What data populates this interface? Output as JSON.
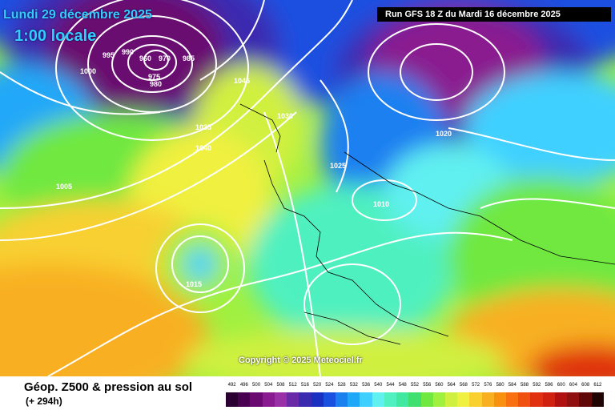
{
  "header": {
    "date": "Lundi 29 décembre 2025",
    "time": "1:00 locale",
    "run": "Run GFS 18 Z du Mardi 16 décembre 2025"
  },
  "copyright": "Copyright © 2025 Meteociel.fr",
  "footer": {
    "product": "Géop. Z500 & pression au sol",
    "lead": "(+ 294h)"
  },
  "legend": {
    "values": [
      "492",
      "496",
      "500",
      "504",
      "508",
      "512",
      "516",
      "520",
      "524",
      "528",
      "532",
      "536",
      "540",
      "544",
      "548",
      "552",
      "556",
      "560",
      "564",
      "568",
      "572",
      "576",
      "580",
      "584",
      "588",
      "592",
      "596",
      "600",
      "604",
      "608",
      "612"
    ],
    "colors": [
      "#2a0030",
      "#4a0050",
      "#6a0a70",
      "#8a1a90",
      "#9a30a8",
      "#6a2aa8",
      "#3a2ab0",
      "#1a30c0",
      "#1a50e0",
      "#1a80f0",
      "#20a8f8",
      "#40d0ff",
      "#60f0f0",
      "#50f0c0",
      "#40e8a0",
      "#40e070",
      "#70e840",
      "#a0f040",
      "#d0f040",
      "#f0f040",
      "#f8d030",
      "#f8b020",
      "#f89010",
      "#f87010",
      "#f05010",
      "#e03010",
      "#d02010",
      "#b01010",
      "#901010",
      "#600808",
      "#200404"
    ]
  },
  "pressure_labels": [
    "1005",
    "1040",
    "1030",
    "1010",
    "1015",
    "1035",
    "1025",
    "1020",
    "990",
    "995",
    "960",
    "970",
    "975",
    "980",
    "985",
    "1000",
    "1045"
  ]
}
